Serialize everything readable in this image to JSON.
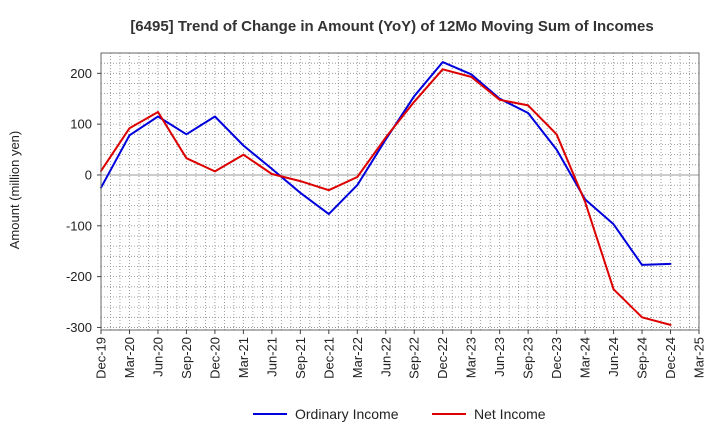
{
  "chart_data": {
    "type": "line",
    "title": "[6495]  Trend of Change in Amount (YoY) of 12Mo Moving Sum of Incomes",
    "xlabel": "",
    "ylabel": "Amount (million yen)",
    "ylim": [
      -305,
      240
    ],
    "yticks": [
      200,
      100,
      0,
      -100,
      -200,
      -300
    ],
    "categories": [
      "Dec-19",
      "Mar-20",
      "Jun-20",
      "Sep-20",
      "Dec-20",
      "Mar-21",
      "Jun-21",
      "Sep-21",
      "Dec-21",
      "Mar-22",
      "Jun-22",
      "Sep-22",
      "Dec-22",
      "Mar-23",
      "Jun-23",
      "Sep-23",
      "Dec-23",
      "Mar-24",
      "Jun-24",
      "Sep-24",
      "Dec-24",
      "Mar-25"
    ],
    "series": [
      {
        "name": "Ordinary Income",
        "color": "#0000dd",
        "values": [
          -25,
          78,
          115,
          80,
          115,
          58,
          12,
          -35,
          -77,
          -20,
          70,
          155,
          222,
          198,
          150,
          122,
          50,
          -48,
          -97,
          -177,
          -175,
          null
        ]
      },
      {
        "name": "Net Income",
        "color": "#dd0000",
        "values": [
          8,
          92,
          124,
          33,
          7,
          40,
          2,
          -12,
          -30,
          -4,
          74,
          144,
          208,
          193,
          148,
          137,
          80,
          -53,
          -225,
          -280,
          -295,
          null
        ]
      }
    ],
    "grid": true,
    "legend": "bottom-center"
  }
}
